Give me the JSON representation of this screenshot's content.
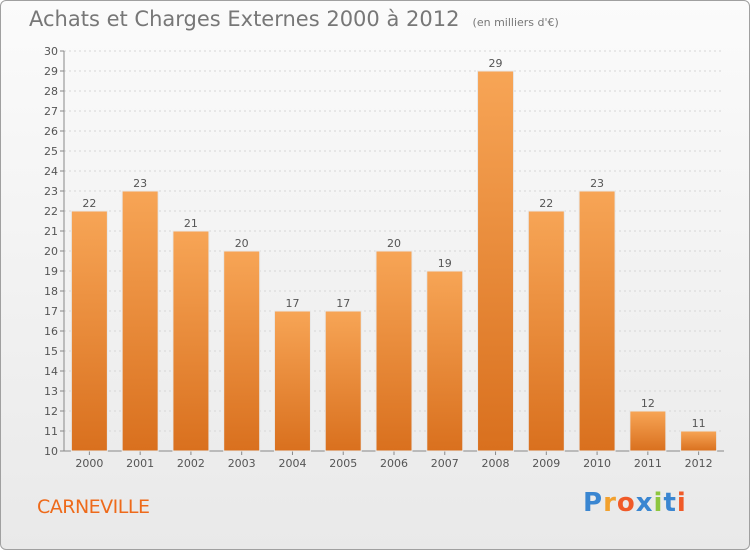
{
  "chart_data": {
    "type": "bar",
    "title": "Achats et Charges Externes 2000 à 2012",
    "subtitle": "(en milliers d'€)",
    "categories": [
      "2000",
      "2001",
      "2002",
      "2003",
      "2004",
      "2005",
      "2006",
      "2007",
      "2008",
      "2009",
      "2010",
      "2011",
      "2012"
    ],
    "values": [
      22,
      23,
      21,
      20,
      17,
      17,
      20,
      19,
      29,
      22,
      23,
      12,
      11
    ],
    "ylim": [
      10,
      30
    ],
    "yticks": [
      10,
      11,
      12,
      13,
      14,
      15,
      16,
      17,
      18,
      19,
      20,
      21,
      22,
      23,
      24,
      25,
      26,
      27,
      28,
      29,
      30
    ],
    "grid": true,
    "bar_color_top": "#f7a556",
    "bar_color_bottom": "#d9701e",
    "bar_color_edge": "#e8e8e8"
  },
  "place_name": "CARNEVILLE",
  "logo": {
    "letters": [
      "P",
      "r",
      "o",
      "x",
      "i",
      "t",
      "i"
    ],
    "colors": [
      "#3a86d1",
      "#f2a12e",
      "#f05a28",
      "#3a86d1",
      "#8dc63f",
      "#3a86d1",
      "#f05a28"
    ]
  }
}
